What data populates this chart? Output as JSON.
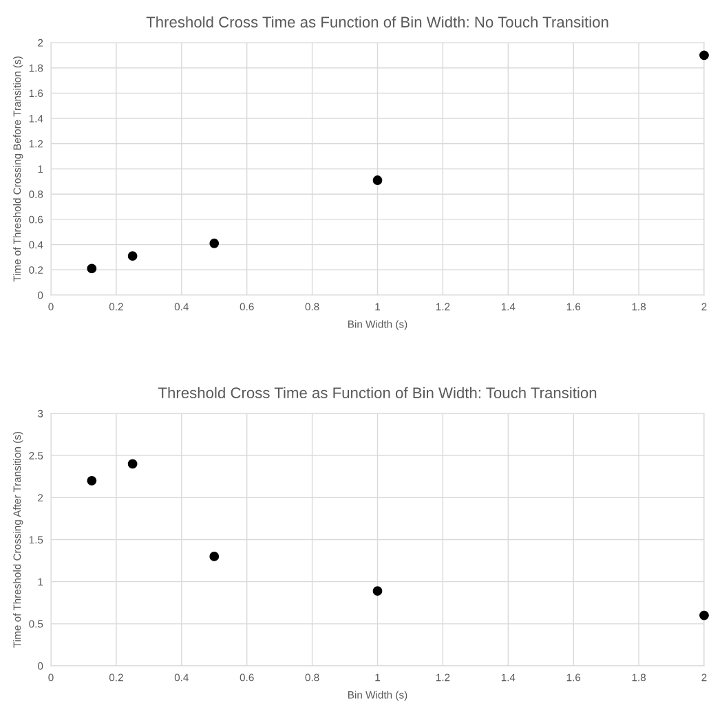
{
  "chart_data": [
    {
      "type": "scatter",
      "title": "Threshold Cross Time as Function of Bin Width: No Touch Transition",
      "xlabel": "Bin Width (s)",
      "ylabel": "Time of Threshold Crossing Before Transition (s)",
      "x": [
        0.125,
        0.25,
        0.5,
        1,
        2
      ],
      "series": [
        {
          "color": "#000000",
          "values": [
            0.21,
            0.31,
            0.41,
            0.91,
            1.9
          ]
        }
      ],
      "xlim": [
        0,
        2
      ],
      "xticks": [
        0,
        0.2,
        0.4,
        0.6,
        0.8,
        1,
        1.2,
        1.4,
        1.6,
        1.8,
        2
      ],
      "ylim": [
        0,
        2
      ],
      "yticks": [
        0,
        0.2,
        0.4,
        0.6,
        0.8,
        1,
        1.2,
        1.4,
        1.6,
        1.8,
        2
      ],
      "grid": true,
      "marker": "circle"
    },
    {
      "type": "scatter",
      "title": "Threshold Cross Time as Function of Bin Width: Touch Transition",
      "xlabel": "Bin Width (s)",
      "ylabel": "Time of Threshold Crossing After Transition (s)",
      "x": [
        0.125,
        0.25,
        0.5,
        1,
        2
      ],
      "series": [
        {
          "color": "#000000",
          "values": [
            2.2,
            2.4,
            1.3,
            0.89,
            0.6
          ]
        }
      ],
      "xlim": [
        0,
        2
      ],
      "xticks": [
        0,
        0.2,
        0.4,
        0.6,
        0.8,
        1,
        1.2,
        1.4,
        1.6,
        1.8,
        2
      ],
      "ylim": [
        0,
        3
      ],
      "yticks": [
        0,
        0.5,
        1,
        1.5,
        2,
        2.5,
        3
      ],
      "grid": true,
      "marker": "circle"
    }
  ]
}
